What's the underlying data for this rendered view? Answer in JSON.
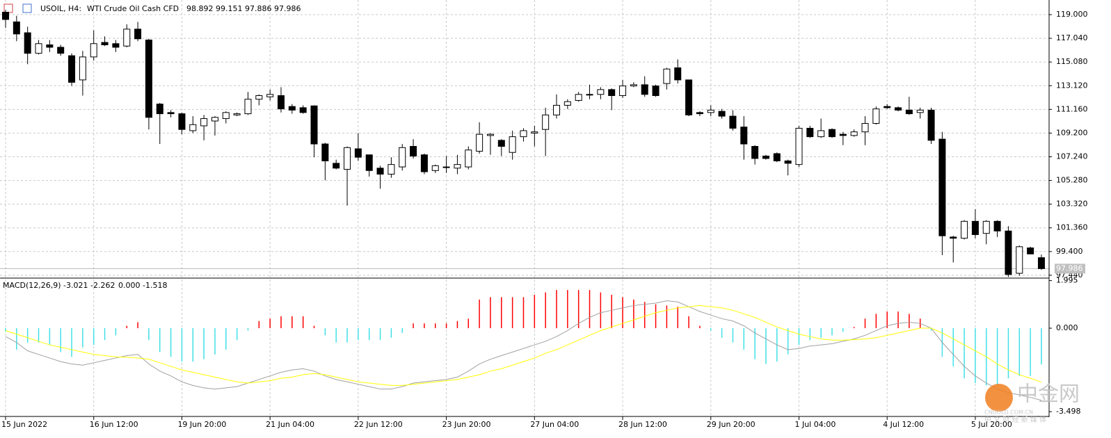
{
  "chart_data": {
    "type": "candlestick",
    "symbol": "USOIL, H4:",
    "description": "WTI Crude Oil Cash CFD",
    "categories": [
      "15 Jun 2022",
      null,
      null,
      null,
      null,
      null,
      null,
      null,
      "16 Jun 12:00",
      null,
      null,
      null,
      null,
      null,
      null,
      null,
      "19 Jun 20:00",
      null,
      null,
      null,
      null,
      null,
      null,
      null,
      "21 Jun 04:00",
      null,
      null,
      null,
      null,
      null,
      null,
      null,
      "22 Jun 12:00",
      null,
      null,
      null,
      null,
      null,
      null,
      null,
      "23 Jun 20:00",
      null,
      null,
      null,
      null,
      null,
      null,
      null,
      "27 Jun 04:00",
      null,
      null,
      null,
      null,
      null,
      null,
      null,
      "28 Jun 12:00",
      null,
      null,
      null,
      null,
      null,
      null,
      null,
      "29 Jun 20:00",
      null,
      null,
      null,
      null,
      null,
      null,
      null,
      "1 Jul 04:00",
      null,
      null,
      null,
      null,
      null,
      null,
      null,
      "4 Jul 12:00",
      null,
      null,
      null,
      null,
      null,
      null,
      null,
      "5 Jul 20:00",
      null,
      null,
      null,
      null,
      null,
      null
    ],
    "open": [
      119.2,
      118.4,
      117.5,
      115.8,
      116.5,
      116.3,
      115.6,
      113.6,
      115.5,
      116.7,
      116.6,
      116.4,
      117.8,
      116.9,
      111.6,
      110.9,
      110.8,
      109.4,
      109.8,
      110.2,
      110.4,
      110.7,
      110.8,
      112.0,
      112.2,
      112.3,
      111.4,
      111.3,
      111.45,
      108.3,
      106.7,
      106.2,
      107.9,
      107.4,
      106.3,
      105.8,
      106.4,
      108.1,
      107.4,
      106.1,
      106.4,
      106.3,
      106.4,
      107.7,
      109.0,
      108.6,
      107.6,
      108.9,
      109.2,
      109.5,
      110.7,
      111.5,
      111.9,
      112.4,
      112.4,
      112.8,
      112.3,
      113.1,
      113.2,
      113.1,
      113.3,
      114.6,
      113.6,
      110.9,
      110.9,
      111.0,
      110.6,
      109.7,
      108.1,
      107.3,
      107.5,
      106.9,
      106.6,
      109.6,
      108.9,
      109.5,
      109.1,
      109.0,
      109.3,
      110.0,
      111.4,
      111.3,
      111.1,
      110.9,
      111.1,
      108.7,
      100.6,
      100.5,
      101.9,
      100.9,
      101.9,
      101.1,
      97.6,
      99.7,
      98.892
    ],
    "high": [
      119.4,
      118.9,
      118.0,
      116.9,
      116.9,
      116.5,
      115.8,
      116.0,
      117.7,
      117.2,
      116.9,
      118.2,
      118.4,
      117.0,
      111.7,
      111.1,
      110.9,
      110.6,
      110.7,
      110.6,
      111.0,
      110.9,
      112.6,
      112.4,
      112.8,
      113.0,
      111.6,
      111.5,
      111.5,
      108.4,
      107.0,
      108.1,
      109.2,
      107.4,
      106.5,
      107.2,
      108.3,
      108.7,
      107.5,
      106.6,
      107.3,
      107.4,
      108.1,
      110.1,
      109.2,
      108.7,
      109.4,
      109.6,
      109.8,
      111.3,
      112.4,
      112.0,
      112.6,
      113.2,
      113.0,
      112.9,
      113.6,
      113.4,
      113.9,
      113.2,
      114.6,
      115.3,
      113.6,
      111.0,
      111.5,
      111.2,
      111.1,
      110.6,
      108.2,
      107.4,
      107.6,
      107.0,
      109.8,
      109.8,
      110.4,
      109.6,
      109.3,
      109.5,
      110.6,
      111.4,
      111.6,
      111.4,
      112.2,
      111.3,
      111.3,
      109.3,
      100.7,
      102.0,
      102.9,
      102.0,
      102.0,
      101.5,
      99.9,
      99.8,
      99.151
    ],
    "low": [
      117.9,
      116.8,
      114.9,
      115.7,
      115.9,
      115.6,
      113.1,
      112.3,
      115.2,
      116.4,
      115.9,
      116.3,
      116.8,
      109.5,
      108.3,
      110.5,
      109.1,
      109.2,
      108.6,
      109.0,
      110.0,
      110.6,
      110.7,
      111.5,
      111.9,
      110.9,
      110.8,
      110.8,
      107.2,
      105.3,
      106.2,
      103.2,
      106.9,
      105.6,
      104.6,
      105.5,
      106.1,
      107.1,
      105.8,
      105.9,
      105.9,
      105.8,
      106.2,
      107.5,
      107.4,
      107.3,
      107.0,
      108.5,
      108.1,
      107.3,
      110.4,
      111.2,
      111.8,
      112.0,
      112.0,
      111.1,
      112.1,
      113.0,
      112.2,
      112.2,
      112.8,
      113.3,
      110.6,
      110.6,
      110.6,
      110.4,
      109.4,
      107.0,
      106.6,
      107.0,
      106.8,
      105.7,
      106.4,
      108.8,
      108.8,
      108.8,
      108.2,
      108.9,
      108.2,
      109.9,
      111.2,
      111.0,
      110.7,
      110.4,
      108.3,
      99.1,
      98.5,
      100.4,
      100.5,
      100.0,
      100.6,
      97.3,
      97.4,
      99.2,
      97.886
    ],
    "close": [
      118.6,
      117.4,
      115.8,
      116.6,
      116.3,
      115.8,
      113.4,
      115.5,
      116.6,
      116.5,
      116.3,
      117.8,
      117.0,
      110.5,
      110.8,
      110.8,
      109.5,
      109.9,
      110.4,
      110.5,
      110.9,
      110.8,
      112.0,
      112.3,
      112.4,
      111.2,
      111.1,
      110.9,
      108.3,
      106.9,
      106.3,
      108.0,
      107.2,
      106.1,
      105.8,
      106.6,
      108.0,
      107.3,
      106.0,
      106.5,
      106.4,
      106.6,
      107.8,
      109.1,
      109.1,
      108.1,
      108.9,
      109.4,
      109.3,
      110.7,
      111.5,
      111.8,
      112.4,
      112.4,
      112.8,
      112.3,
      113.1,
      113.2,
      112.4,
      112.3,
      114.5,
      113.6,
      110.7,
      110.8,
      111.1,
      110.6,
      109.6,
      108.3,
      107.1,
      107.1,
      106.9,
      106.7,
      109.6,
      108.9,
      109.4,
      108.9,
      109.0,
      109.3,
      110.0,
      111.2,
      111.3,
      111.1,
      110.8,
      111.1,
      108.6,
      100.7,
      100.5,
      101.9,
      100.8,
      101.9,
      101.1,
      97.5,
      99.8,
      99.2,
      97.986
    ],
    "up_color": "#ffffff",
    "down_color": "#000000",
    "wick_color": "#000000",
    "ylim": [
      97.26,
      120.21
    ],
    "yticks": [
      {
        "value": 119,
        "label": "119.000"
      },
      {
        "value": 117.04,
        "label": "117.040"
      },
      {
        "value": 115.08,
        "label": "115.080"
      },
      {
        "value": 113.12,
        "label": "113.120"
      },
      {
        "value": 111.16,
        "label": "111.160"
      },
      {
        "value": 109.2,
        "label": "109.200"
      },
      {
        "value": 107.24,
        "label": "107.240"
      },
      {
        "value": 105.28,
        "label": "105.280"
      },
      {
        "value": 103.32,
        "label": "103.320"
      },
      {
        "value": 101.36,
        "label": "101.360"
      },
      {
        "value": 99.4,
        "label": "99.400"
      },
      {
        "value": 97.44,
        "label": "97.440"
      }
    ],
    "grid": true,
    "macd": {
      "label": "MACD(12,26,9)",
      "extra": {
        "value": 0,
        "label": "0.000"
      },
      "ylim": [
        -3.67,
        2.07
      ],
      "yticks": [
        1.995,
        {
          "value": 0,
          "label": "0.000"
        },
        -3.498
      ],
      "histogram": {
        "pos_color": "#ff0000",
        "neg_color": "#40e0e8",
        "values": [
          -0.15,
          -0.9,
          -0.6,
          -0.6,
          -0.7,
          -1.0,
          -1.2,
          -0.8,
          -0.7,
          -0.5,
          -0.3,
          0.1,
          0.25,
          -0.5,
          -1.0,
          -1.2,
          -1.4,
          -1.4,
          -1.3,
          -1.1,
          -0.9,
          -0.5,
          -0.1,
          0.3,
          0.4,
          0.5,
          0.5,
          0.5,
          0.1,
          -0.3,
          -0.6,
          -0.6,
          -0.5,
          -0.5,
          -0.5,
          -0.4,
          -0.2,
          0.2,
          0.2,
          0.2,
          0.2,
          0.3,
          0.4,
          1.2,
          1.3,
          1.3,
          1.3,
          1.3,
          1.4,
          1.5,
          1.6,
          1.6,
          1.6,
          1.6,
          1.5,
          1.4,
          1.3,
          1.2,
          1.1,
          1.0,
          0.95,
          0.9,
          0.5,
          0.1,
          -0.1,
          -0.4,
          -0.6,
          -0.9,
          -1.3,
          -1.5,
          -1.4,
          -1.1,
          -0.7,
          -0.5,
          -0.4,
          -0.3,
          -0.15,
          0.05,
          0.4,
          0.6,
          0.7,
          0.7,
          0.6,
          0.4,
          -0.1,
          -1.2,
          -1.6,
          -2.1,
          -2.3,
          -2.4,
          -2.4,
          -2.1,
          -2.0,
          -2.0,
          -1.518
        ]
      },
      "series": [
        {
          "color": "#a0a0a0",
          "values": [
            -0.35,
            -0.6,
            -0.95,
            -1.1,
            -1.25,
            -1.4,
            -1.5,
            -1.55,
            -1.45,
            -1.35,
            -1.25,
            -1.15,
            -1.1,
            -1.5,
            -1.8,
            -2.0,
            -2.25,
            -2.4,
            -2.5,
            -2.55,
            -2.5,
            -2.45,
            -2.3,
            -2.15,
            -2.0,
            -1.85,
            -1.75,
            -1.7,
            -1.8,
            -2.0,
            -2.15,
            -2.25,
            -2.35,
            -2.45,
            -2.55,
            -2.55,
            -2.45,
            -2.3,
            -2.25,
            -2.2,
            -2.15,
            -2.05,
            -1.8,
            -1.5,
            -1.3,
            -1.15,
            -1.0,
            -0.85,
            -0.7,
            -0.55,
            -0.35,
            -0.1,
            0.2,
            0.45,
            0.65,
            0.75,
            0.85,
            0.95,
            1.0,
            1.05,
            1.15,
            1.1,
            0.9,
            0.7,
            0.55,
            0.4,
            0.3,
            0.1,
            -0.2,
            -0.45,
            -0.7,
            -0.9,
            -0.85,
            -0.75,
            -0.7,
            -0.65,
            -0.55,
            -0.45,
            -0.3,
            -0.1,
            0.1,
            0.2,
            0.25,
            0.2,
            0.0,
            -0.6,
            -1.1,
            -1.6,
            -2.0,
            -2.3,
            -2.55,
            -2.7,
            -2.8,
            -2.9,
            -3.021
          ]
        },
        {
          "color": "#ffff00",
          "values": [
            -0.1,
            -0.25,
            -0.4,
            -0.55,
            -0.7,
            -0.8,
            -0.9,
            -1.0,
            -1.1,
            -1.15,
            -1.2,
            -1.22,
            -1.25,
            -1.3,
            -1.45,
            -1.6,
            -1.75,
            -1.85,
            -1.95,
            -2.05,
            -2.15,
            -2.25,
            -2.3,
            -2.25,
            -2.2,
            -2.1,
            -2.05,
            -1.95,
            -1.9,
            -1.95,
            -2.05,
            -2.15,
            -2.25,
            -2.3,
            -2.35,
            -2.4,
            -2.4,
            -2.35,
            -2.3,
            -2.25,
            -2.2,
            -2.15,
            -2.05,
            -1.95,
            -1.8,
            -1.7,
            -1.55,
            -1.4,
            -1.25,
            -1.05,
            -0.9,
            -0.7,
            -0.5,
            -0.3,
            -0.1,
            0.05,
            0.2,
            0.35,
            0.5,
            0.65,
            0.75,
            0.85,
            0.9,
            0.95,
            0.9,
            0.85,
            0.75,
            0.6,
            0.45,
            0.25,
            0.05,
            -0.1,
            -0.25,
            -0.35,
            -0.45,
            -0.5,
            -0.5,
            -0.48,
            -0.45,
            -0.4,
            -0.3,
            -0.2,
            -0.1,
            0.0,
            0.0,
            -0.2,
            -0.45,
            -0.7,
            -0.95,
            -1.2,
            -1.5,
            -1.75,
            -1.95,
            -2.1,
            -2.262
          ]
        }
      ]
    },
    "watermark": "中金网",
    "watermark_sub": "CNGOLD.COM.CN",
    "watermark_slogan": "中 文 财 经 新 媒 体"
  }
}
